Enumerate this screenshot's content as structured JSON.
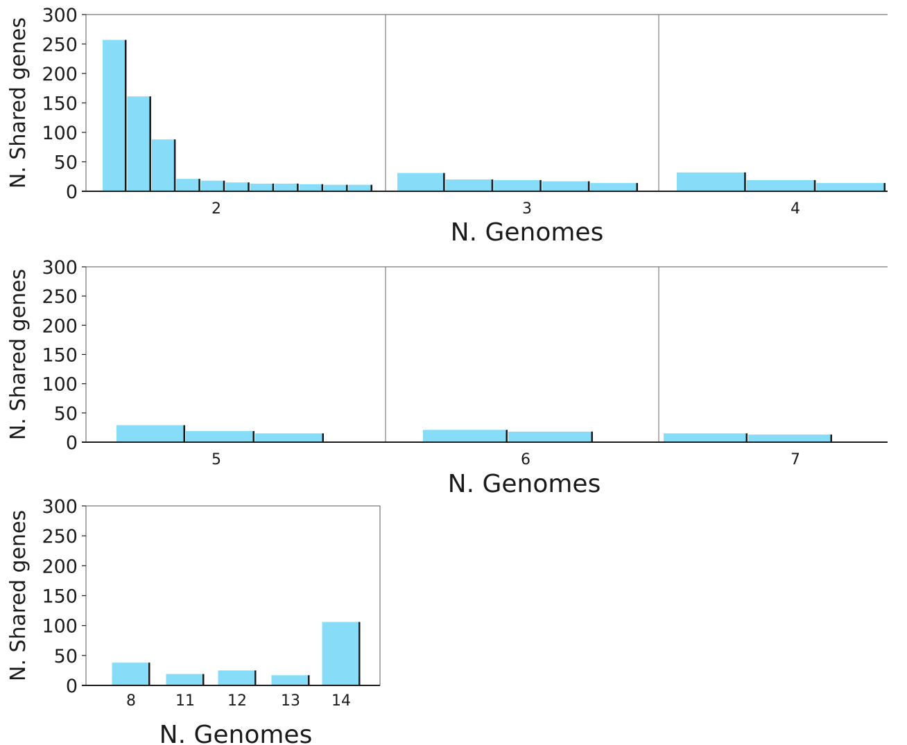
{
  "figure": {
    "background": "#ffffff"
  },
  "style": {
    "bar_color": "#87dcf7",
    "bar_shadow": "#1a1a1a",
    "axis_color": "#1a1a1a",
    "divider_color": "#7f7f7f"
  },
  "chart_data": [
    {
      "type": "bar",
      "ylabel": "N. Shared genes",
      "xlabel": "N. Genomes",
      "ylim": [
        0,
        300
      ],
      "yticks": [
        0,
        50,
        100,
        150,
        200,
        250,
        300
      ],
      "grid": false,
      "groups": [
        {
          "category": "2",
          "values": [
            257,
            161,
            88,
            21,
            18,
            15,
            13,
            13,
            12,
            11,
            11
          ]
        },
        {
          "category": "3",
          "values": [
            31,
            20,
            19,
            17,
            14
          ]
        },
        {
          "category": "4",
          "values": [
            32,
            19,
            14
          ]
        }
      ]
    },
    {
      "type": "bar",
      "ylabel": "N. Shared genes",
      "xlabel": "N. Genomes",
      "ylim": [
        0,
        300
      ],
      "yticks": [
        0,
        50,
        100,
        150,
        200,
        250,
        300
      ],
      "grid": false,
      "groups": [
        {
          "category": "5",
          "values": [
            29,
            19,
            15,
            1
          ]
        },
        {
          "category": "6",
          "values": [
            21,
            18,
            1
          ]
        },
        {
          "category": "7",
          "values": [
            15,
            13
          ]
        }
      ]
    },
    {
      "type": "bar",
      "ylabel": "N. Shared genes",
      "xlabel": "N. Genomes",
      "ylim": [
        0,
        300
      ],
      "yticks": [
        0,
        50,
        100,
        150,
        200,
        250,
        300
      ],
      "grid": false,
      "categories": [
        "8",
        "11",
        "12",
        "13",
        "14"
      ],
      "values": [
        38,
        19,
        25,
        17,
        106
      ]
    }
  ]
}
